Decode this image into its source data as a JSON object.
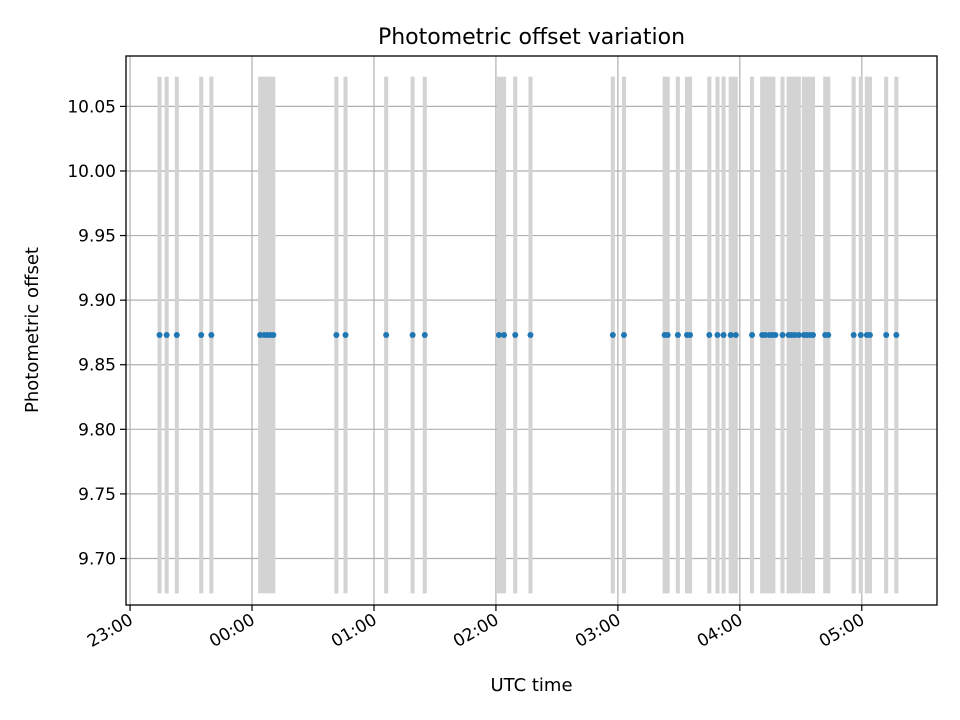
{
  "chart_data": {
    "type": "scatter",
    "title": "Photometric offset variation",
    "xlabel": "UTC time",
    "ylabel": "Photometric offset",
    "xlim": [
      "22:58",
      "05:37"
    ],
    "ylim": [
      9.664,
      10.089
    ],
    "x_ticks": [
      "23:00",
      "00:00",
      "01:00",
      "02:00",
      "03:00",
      "04:00",
      "05:00"
    ],
    "y_ticks": [
      "9.70",
      "9.75",
      "9.80",
      "9.85",
      "9.90",
      "9.95",
      "10.00",
      "10.05"
    ],
    "grid": true,
    "point_color": "#1f77b4",
    "band_color": "#d3d3d3",
    "band_range": [
      9.673,
      10.073
    ],
    "series": [
      {
        "values_y": 9.873,
        "x": [
          "23:14:30",
          "23:18:00",
          "23:23:00",
          "23:35:00",
          "23:40:00",
          "00:04:00",
          "00:06:00",
          "00:07:30",
          "00:09:00",
          "00:10:30",
          "00:41:30",
          "00:46:00",
          "01:06:00",
          "01:19:00",
          "01:25:00",
          "02:01:30",
          "02:04:00",
          "02:09:30",
          "02:17:00",
          "02:57:30",
          "03:03:00",
          "03:23:00",
          "03:24:30",
          "03:29:30",
          "03:34:00",
          "03:35:30",
          "03:45:00",
          "03:49:00",
          "03:52:00",
          "03:55:30",
          "03:58:00",
          "04:06:00",
          "04:11:00",
          "04:12:30",
          "04:14:30",
          "04:16:00",
          "04:17:30",
          "04:21:00",
          "04:24:00",
          "04:25:30",
          "04:27:00",
          "04:29:00",
          "04:31:30",
          "04:33:00",
          "04:34:30",
          "04:36:00",
          "04:42:00",
          "04:43:30",
          "04:56:00",
          "04:59:30",
          "05:02:30",
          "05:04:00",
          "05:12:00",
          "05:17:00"
        ]
      }
    ],
    "bands_x": [
      [
        "23:13:30",
        "23:15:30"
      ],
      [
        "23:17:00",
        "23:19:00"
      ],
      [
        "23:22:00",
        "23:24:00"
      ],
      [
        "23:34:00",
        "23:36:00"
      ],
      [
        "23:39:00",
        "23:41:00"
      ],
      [
        "00:03:00",
        "00:11:30"
      ],
      [
        "00:40:30",
        "00:42:30"
      ],
      [
        "00:45:00",
        "00:47:00"
      ],
      [
        "01:05:00",
        "01:07:00"
      ],
      [
        "01:18:00",
        "01:20:00"
      ],
      [
        "01:24:00",
        "01:26:00"
      ],
      [
        "02:00:30",
        "02:05:00"
      ],
      [
        "02:08:30",
        "02:10:30"
      ],
      [
        "02:16:00",
        "02:18:00"
      ],
      [
        "02:56:30",
        "02:58:30"
      ],
      [
        "03:02:00",
        "03:04:00"
      ],
      [
        "03:22:00",
        "03:25:30"
      ],
      [
        "03:28:30",
        "03:30:30"
      ],
      [
        "03:33:00",
        "03:36:30"
      ],
      [
        "03:44:00",
        "03:46:00"
      ],
      [
        "03:48:00",
        "03:50:00"
      ],
      [
        "03:51:00",
        "03:53:00"
      ],
      [
        "03:54:30",
        "03:59:00"
      ],
      [
        "04:05:00",
        "04:07:00"
      ],
      [
        "04:10:00",
        "04:17:30"
      ],
      [
        "04:20:00",
        "04:22:00"
      ],
      [
        "04:23:00",
        "04:30:00"
      ],
      [
        "04:30:30",
        "04:37:00"
      ],
      [
        "04:41:00",
        "04:44:30"
      ],
      [
        "04:55:00",
        "04:57:00"
      ],
      [
        "04:58:30",
        "05:00:30"
      ],
      [
        "05:01:30",
        "05:05:00"
      ],
      [
        "05:11:00",
        "05:13:00"
      ],
      [
        "05:16:00",
        "05:18:00"
      ]
    ]
  }
}
